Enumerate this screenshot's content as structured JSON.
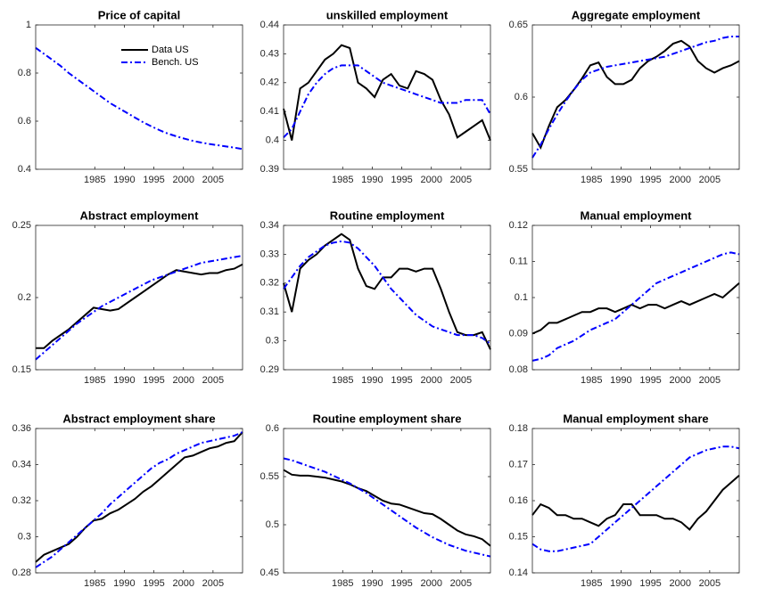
{
  "chart_data": [
    {
      "type": "line",
      "title": "Price of capital",
      "legend": "upper right",
      "x": [
        1975,
        1976.4,
        1977.8,
        1979.2,
        1980.6,
        1982,
        1983.4,
        1984.8,
        1986.2,
        1987.6,
        1989,
        1990.4,
        1991.8,
        1993.2,
        1994.6,
        1996,
        1997.4,
        1998.8,
        2000.2,
        2001.6,
        2003,
        2004.4,
        2005.8,
        2007.2,
        2008.6,
        2010
      ],
      "xlim": [
        1975,
        2010
      ],
      "xticks": [
        1985,
        1990,
        1995,
        2000,
        2005
      ],
      "ylim": [
        0.4,
        1
      ],
      "yticks": [
        0.4,
        0.6,
        0.8,
        1
      ],
      "series": [
        {
          "name": "Data US",
          "color": "#000000",
          "style": "solid",
          "values": [
            null,
            null,
            null,
            null,
            null,
            null,
            null,
            null,
            null,
            null,
            null,
            null,
            null,
            null,
            null,
            null,
            null,
            null,
            null,
            null,
            null,
            null,
            null,
            null,
            null,
            null
          ]
        },
        {
          "name": "Bench. US",
          "color": "#0000ff",
          "style": "dashdot",
          "values": [
            0.905,
            0.88,
            0.855,
            0.83,
            0.8,
            0.775,
            0.75,
            0.725,
            0.7,
            0.675,
            0.655,
            0.635,
            0.615,
            0.595,
            0.578,
            0.562,
            0.548,
            0.537,
            0.527,
            0.518,
            0.511,
            0.505,
            0.5,
            0.495,
            0.49,
            0.484
          ]
        }
      ]
    },
    {
      "type": "line",
      "title": "unskilled employment",
      "x": [
        1975,
        1976.4,
        1977.8,
        1979.2,
        1980.6,
        1982,
        1983.4,
        1984.8,
        1986.2,
        1987.6,
        1989,
        1990.4,
        1991.8,
        1993.2,
        1994.6,
        1996,
        1997.4,
        1998.8,
        2000.2,
        2001.6,
        2003,
        2004.4,
        2005.8,
        2007.2,
        2008.6,
        2010
      ],
      "xlim": [
        1975,
        2010
      ],
      "xticks": [
        1985,
        1990,
        1995,
        2000,
        2005
      ],
      "ylim": [
        0.39,
        0.44
      ],
      "yticks": [
        0.39,
        0.4,
        0.41,
        0.42,
        0.43,
        0.44
      ],
      "series": [
        {
          "color": "#000000",
          "style": "solid",
          "values": [
            0.411,
            0.4,
            0.418,
            0.42,
            0.424,
            0.428,
            0.43,
            0.433,
            0.432,
            0.42,
            0.418,
            0.415,
            0.421,
            0.423,
            0.419,
            0.418,
            0.424,
            0.423,
            0.421,
            0.414,
            0.409,
            0.401,
            0.403,
            0.405,
            0.407,
            0.4
          ]
        },
        {
          "color": "#0000ff",
          "style": "dashdot",
          "values": [
            0.401,
            0.404,
            0.41,
            0.416,
            0.42,
            0.423,
            0.425,
            0.426,
            0.426,
            0.426,
            0.424,
            0.422,
            0.42,
            0.419,
            0.418,
            0.417,
            0.416,
            0.415,
            0.414,
            0.413,
            0.413,
            0.413,
            0.414,
            0.414,
            0.414,
            0.409
          ]
        }
      ]
    },
    {
      "type": "line",
      "title": "Aggregate employment",
      "x": [
        1975,
        1976.4,
        1977.8,
        1979.2,
        1980.6,
        1982,
        1983.4,
        1984.8,
        1986.2,
        1987.6,
        1989,
        1990.4,
        1991.8,
        1993.2,
        1994.6,
        1996,
        1997.4,
        1998.8,
        2000.2,
        2001.6,
        2003,
        2004.4,
        2005.8,
        2007.2,
        2008.6,
        2010
      ],
      "xlim": [
        1975,
        2010
      ],
      "xticks": [
        1985,
        1990,
        1995,
        2000,
        2005
      ],
      "ylim": [
        0.55,
        0.65
      ],
      "yticks": [
        0.55,
        0.6,
        0.65
      ],
      "series": [
        {
          "color": "#000000",
          "style": "solid",
          "values": [
            0.575,
            0.565,
            0.58,
            0.593,
            0.598,
            0.605,
            0.613,
            0.622,
            0.624,
            0.614,
            0.609,
            0.609,
            0.612,
            0.62,
            0.625,
            0.628,
            0.632,
            0.637,
            0.639,
            0.635,
            0.625,
            0.62,
            0.617,
            0.62,
            0.622,
            0.625
          ]
        },
        {
          "color": "#0000ff",
          "style": "dashdot",
          "values": [
            0.558,
            0.567,
            0.578,
            0.588,
            0.597,
            0.605,
            0.612,
            0.617,
            0.619,
            0.621,
            0.622,
            0.623,
            0.624,
            0.625,
            0.626,
            0.627,
            0.628,
            0.63,
            0.632,
            0.634,
            0.636,
            0.638,
            0.639,
            0.641,
            0.642,
            0.642
          ]
        }
      ]
    },
    {
      "type": "line",
      "title": "Abstract employment",
      "x": [
        1975,
        1976.4,
        1977.8,
        1979.2,
        1980.6,
        1982,
        1983.4,
        1984.8,
        1986.2,
        1987.6,
        1989,
        1990.4,
        1991.8,
        1993.2,
        1994.6,
        1996,
        1997.4,
        1998.8,
        2000.2,
        2001.6,
        2003,
        2004.4,
        2005.8,
        2007.2,
        2008.6,
        2010
      ],
      "xlim": [
        1975,
        2010
      ],
      "xticks": [
        1985,
        1990,
        1995,
        2000,
        2005
      ],
      "ylim": [
        0.15,
        0.25
      ],
      "yticks": [
        0.15,
        0.2,
        0.25
      ],
      "series": [
        {
          "color": "#000000",
          "style": "solid",
          "values": [
            0.165,
            0.165,
            0.17,
            0.174,
            0.178,
            0.183,
            0.188,
            0.193,
            0.192,
            0.191,
            0.192,
            0.196,
            0.2,
            0.204,
            0.208,
            0.212,
            0.216,
            0.219,
            0.218,
            0.217,
            0.216,
            0.217,
            0.217,
            0.219,
            0.22,
            0.223
          ]
        },
        {
          "color": "#0000ff",
          "style": "dashdot",
          "values": [
            0.157,
            0.162,
            0.167,
            0.172,
            0.177,
            0.182,
            0.186,
            0.19,
            0.194,
            0.197,
            0.2,
            0.203,
            0.206,
            0.209,
            0.212,
            0.214,
            0.216,
            0.218,
            0.22,
            0.222,
            0.224,
            0.225,
            0.226,
            0.227,
            0.228,
            0.229
          ]
        }
      ]
    },
    {
      "type": "line",
      "title": "Routine employment",
      "x": [
        1975,
        1976.4,
        1977.8,
        1979.2,
        1980.6,
        1982,
        1983.4,
        1984.8,
        1986.2,
        1987.6,
        1989,
        1990.4,
        1991.8,
        1993.2,
        1994.6,
        1996,
        1997.4,
        1998.8,
        2000.2,
        2001.6,
        2003,
        2004.4,
        2005.8,
        2007.2,
        2008.6,
        2010
      ],
      "xlim": [
        1975,
        2010
      ],
      "xticks": [
        1985,
        1990,
        1995,
        2000,
        2005
      ],
      "ylim": [
        0.29,
        0.34
      ],
      "yticks": [
        0.29,
        0.3,
        0.31,
        0.32,
        0.33,
        0.34
      ],
      "series": [
        {
          "color": "#000000",
          "style": "solid",
          "values": [
            0.32,
            0.31,
            0.325,
            0.328,
            0.33,
            0.333,
            0.335,
            0.337,
            0.335,
            0.325,
            0.319,
            0.318,
            0.322,
            0.322,
            0.325,
            0.325,
            0.324,
            0.325,
            0.325,
            0.318,
            0.31,
            0.303,
            0.302,
            0.302,
            0.303,
            0.297
          ]
        },
        {
          "color": "#0000ff",
          "style": "dashdot",
          "values": [
            0.318,
            0.322,
            0.326,
            0.329,
            0.331,
            0.333,
            0.334,
            0.3345,
            0.334,
            0.332,
            0.329,
            0.326,
            0.322,
            0.318,
            0.315,
            0.312,
            0.309,
            0.307,
            0.305,
            0.304,
            0.303,
            0.302,
            0.302,
            0.302,
            0.301,
            0.299
          ]
        }
      ]
    },
    {
      "type": "line",
      "title": "Manual employment",
      "x": [
        1975,
        1976.4,
        1977.8,
        1979.2,
        1980.6,
        1982,
        1983.4,
        1984.8,
        1986.2,
        1987.6,
        1989,
        1990.4,
        1991.8,
        1993.2,
        1994.6,
        1996,
        1997.4,
        1998.8,
        2000.2,
        2001.6,
        2003,
        2004.4,
        2005.8,
        2007.2,
        2008.6,
        2010
      ],
      "xlim": [
        1975,
        2010
      ],
      "xticks": [
        1985,
        1990,
        1995,
        2000,
        2005
      ],
      "ylim": [
        0.08,
        0.12
      ],
      "yticks": [
        0.08,
        0.09,
        0.1,
        0.11,
        0.12
      ],
      "series": [
        {
          "color": "#000000",
          "style": "solid",
          "values": [
            0.09,
            0.091,
            0.093,
            0.093,
            0.094,
            0.095,
            0.096,
            0.096,
            0.097,
            0.097,
            0.096,
            0.097,
            0.098,
            0.097,
            0.098,
            0.098,
            0.097,
            0.098,
            0.099,
            0.098,
            0.099,
            0.1,
            0.101,
            0.1,
            0.102,
            0.104
          ]
        },
        {
          "color": "#0000ff",
          "style": "dashdot",
          "values": [
            0.0825,
            0.083,
            0.084,
            0.086,
            0.087,
            0.088,
            0.0895,
            0.091,
            0.092,
            0.093,
            0.094,
            0.096,
            0.098,
            0.1,
            0.102,
            0.104,
            0.105,
            0.106,
            0.107,
            0.108,
            0.109,
            0.11,
            0.111,
            0.112,
            0.1125,
            0.112
          ]
        }
      ]
    },
    {
      "type": "line",
      "title": "Abstract employment share",
      "x": [
        1975,
        1976.4,
        1977.8,
        1979.2,
        1980.6,
        1982,
        1983.4,
        1984.8,
        1986.2,
        1987.6,
        1989,
        1990.4,
        1991.8,
        1993.2,
        1994.6,
        1996,
        1997.4,
        1998.8,
        2000.2,
        2001.6,
        2003,
        2004.4,
        2005.8,
        2007.2,
        2008.6,
        2010
      ],
      "xlim": [
        1975,
        2010
      ],
      "xticks": [
        1985,
        1990,
        1995,
        2000,
        2005
      ],
      "ylim": [
        0.28,
        0.36
      ],
      "yticks": [
        0.28,
        0.3,
        0.32,
        0.34,
        0.36
      ],
      "series": [
        {
          "color": "#000000",
          "style": "solid",
          "values": [
            0.286,
            0.29,
            0.292,
            0.294,
            0.296,
            0.3,
            0.305,
            0.309,
            0.31,
            0.313,
            0.315,
            0.318,
            0.321,
            0.325,
            0.328,
            0.332,
            0.336,
            0.34,
            0.344,
            0.345,
            0.347,
            0.349,
            0.35,
            0.352,
            0.353,
            0.358
          ]
        },
        {
          "color": "#0000ff",
          "style": "dashdot",
          "values": [
            0.283,
            0.286,
            0.289,
            0.293,
            0.297,
            0.301,
            0.305,
            0.309,
            0.313,
            0.318,
            0.322,
            0.326,
            0.33,
            0.334,
            0.338,
            0.341,
            0.343,
            0.346,
            0.348,
            0.35,
            0.352,
            0.353,
            0.354,
            0.355,
            0.356,
            0.358
          ]
        }
      ]
    },
    {
      "type": "line",
      "title": "Routine employment share",
      "x": [
        1975,
        1976.4,
        1977.8,
        1979.2,
        1980.6,
        1982,
        1983.4,
        1984.8,
        1986.2,
        1987.6,
        1989,
        1990.4,
        1991.8,
        1993.2,
        1994.6,
        1996,
        1997.4,
        1998.8,
        2000.2,
        2001.6,
        2003,
        2004.4,
        2005.8,
        2007.2,
        2008.6,
        2010
      ],
      "xlim": [
        1975,
        2010
      ],
      "xticks": [
        1985,
        1990,
        1995,
        2000,
        2005
      ],
      "ylim": [
        0.45,
        0.6
      ],
      "yticks": [
        0.45,
        0.5,
        0.55,
        0.6
      ],
      "series": [
        {
          "color": "#000000",
          "style": "solid",
          "values": [
            0.557,
            0.552,
            0.551,
            0.551,
            0.55,
            0.549,
            0.547,
            0.545,
            0.542,
            0.538,
            0.535,
            0.53,
            0.525,
            0.522,
            0.521,
            0.518,
            0.515,
            0.512,
            0.511,
            0.506,
            0.5,
            0.494,
            0.49,
            0.488,
            0.485,
            0.478
          ]
        },
        {
          "color": "#0000ff",
          "style": "dashdot",
          "values": [
            0.569,
            0.567,
            0.564,
            0.561,
            0.558,
            0.555,
            0.551,
            0.547,
            0.543,
            0.538,
            0.533,
            0.527,
            0.521,
            0.515,
            0.509,
            0.503,
            0.497,
            0.492,
            0.487,
            0.483,
            0.479,
            0.476,
            0.473,
            0.471,
            0.469,
            0.467
          ]
        }
      ]
    },
    {
      "type": "line",
      "title": "Manual employment share",
      "x": [
        1975,
        1976.4,
        1977.8,
        1979.2,
        1980.6,
        1982,
        1983.4,
        1984.8,
        1986.2,
        1987.6,
        1989,
        1990.4,
        1991.8,
        1993.2,
        1994.6,
        1996,
        1997.4,
        1998.8,
        2000.2,
        2001.6,
        2003,
        2004.4,
        2005.8,
        2007.2,
        2008.6,
        2010
      ],
      "xlim": [
        1975,
        2010
      ],
      "xticks": [
        1985,
        1990,
        1995,
        2000,
        2005
      ],
      "ylim": [
        0.14,
        0.18
      ],
      "yticks": [
        0.14,
        0.15,
        0.16,
        0.17,
        0.18
      ],
      "series": [
        {
          "color": "#000000",
          "style": "solid",
          "values": [
            0.156,
            0.159,
            0.158,
            0.156,
            0.156,
            0.155,
            0.155,
            0.154,
            0.153,
            0.155,
            0.156,
            0.159,
            0.159,
            0.156,
            0.156,
            0.156,
            0.155,
            0.155,
            0.154,
            0.152,
            0.155,
            0.157,
            0.16,
            0.163,
            0.165,
            0.167
          ]
        },
        {
          "color": "#0000ff",
          "style": "dashdot",
          "values": [
            0.148,
            0.1465,
            0.146,
            0.146,
            0.1465,
            0.147,
            0.1475,
            0.148,
            0.15,
            0.152,
            0.154,
            0.156,
            0.158,
            0.16,
            0.162,
            0.164,
            0.166,
            0.168,
            0.17,
            0.172,
            0.173,
            0.174,
            0.1745,
            0.175,
            0.175,
            0.1745
          ]
        }
      ]
    }
  ]
}
